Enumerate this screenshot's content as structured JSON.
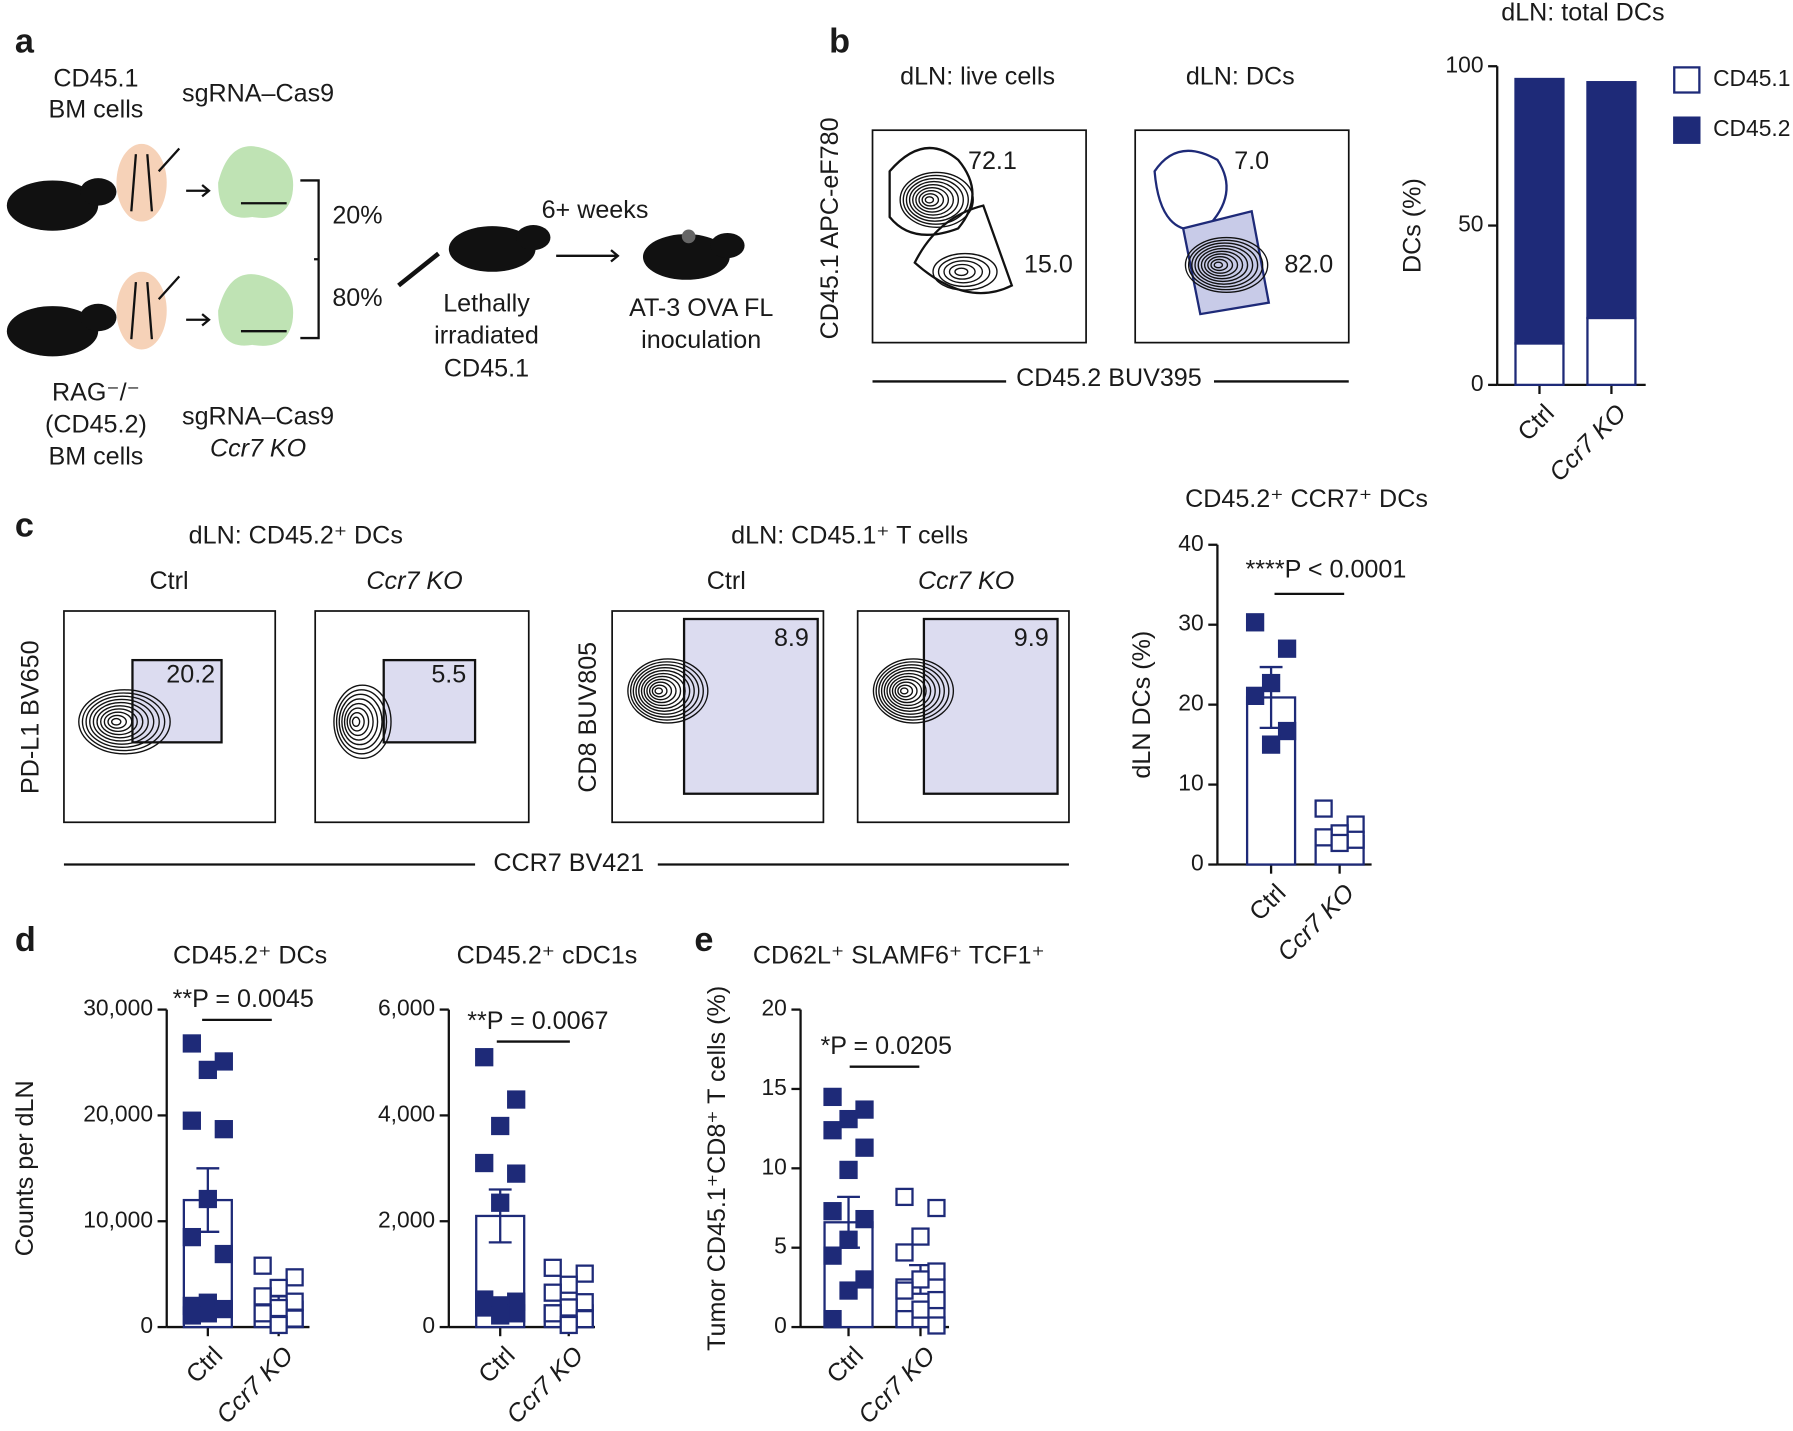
{
  "panel_labels": [
    "a",
    "b",
    "c",
    "d",
    "e"
  ],
  "schematic": {
    "donor_1": [
      "CD45.1",
      "BM cells"
    ],
    "edit_1": "sgRNA–Cas9",
    "ratios": [
      "20%",
      "80%"
    ],
    "time": "6+ weeks",
    "recipient": [
      "Lethally",
      "irradiated",
      "CD45.1"
    ],
    "outcome": [
      "AT-3 OVA FL",
      "inoculation"
    ],
    "donor_2": [
      "RAG⁻/⁻",
      "(CD45.2)",
      "BM cells"
    ],
    "edit_2": [
      "sgRNA–Cas9",
      "Ccr7 KO"
    ]
  },
  "flow_b": {
    "titles": [
      "dLN: live cells",
      "dLN: DCs"
    ],
    "y_label": "CD45.1 APC-eF780",
    "x_label": "CD45.2 BUV395",
    "gates": [
      "72.1",
      "15.0",
      "7.0",
      "82.0"
    ]
  },
  "flow_c": {
    "titles": [
      "dLN: CD45.2⁺ DCs",
      "dLN: CD45.1⁺ T cells"
    ],
    "columns": [
      "Ctrl",
      "Ccr7 KO",
      "Ctrl",
      "Ccr7 KO"
    ],
    "y_labels": [
      "PD-L1 BV650",
      "CD8 BUV805"
    ],
    "x_label": "CCR7 BV421",
    "gates": [
      "20.2",
      "5.5",
      "8.9",
      "9.9"
    ]
  },
  "chart_data": [
    {
      "type": "stacked_bar",
      "title": "dLN: total DCs",
      "ylabel": "DCs (%)",
      "categories": [
        "Ctrl",
        "Ccr7 KO"
      ],
      "series": [
        {
          "name": "CD45.1",
          "color": "#ffffff",
          "values": [
            13,
            21
          ]
        },
        {
          "name": "CD45.2",
          "color": "#1e2a78",
          "values": [
            83,
            74
          ]
        }
      ],
      "edge_color": "#1e2a78",
      "ylim": [
        0,
        100
      ],
      "yticks": [
        0,
        50,
        100
      ],
      "legend": "right"
    },
    {
      "type": "scatter_bar",
      "title": "CD45.2⁺ CCR7⁺ DCs",
      "ylabel": "dLN DCs (%)",
      "annotation": "****P < 0.0001",
      "categories": [
        "Ctrl",
        "Ccr7 KO"
      ],
      "values": [
        20.9,
        3.6
      ],
      "errors": [
        3.8,
        0.6
      ],
      "points": [
        [
          30.3,
          27,
          22.7,
          21.1,
          16.7,
          15
        ],
        [
          7,
          5,
          3.9,
          3.4,
          3.1,
          2.7
        ]
      ],
      "filled": [
        true,
        false
      ],
      "color": "#1e2a78",
      "ylim": [
        0,
        40
      ],
      "yticks": [
        0,
        10,
        20,
        30,
        40
      ]
    },
    {
      "type": "scatter_bar",
      "title": "CD45.2⁺ DCs",
      "ylabel": "Counts per dLN",
      "annotation": "**P = 0.0045",
      "categories": [
        "Ctrl",
        "Ccr7 KO"
      ],
      "values": [
        12000,
        2400
      ],
      "errors": [
        3000,
        500
      ],
      "points": [
        [
          26800,
          25100,
          24300,
          19500,
          18700,
          12100,
          8500,
          6900,
          2300,
          2000,
          1700,
          1300,
          1100
        ],
        [
          5800,
          4700,
          3700,
          2900,
          2400,
          1800,
          1300,
          800,
          200
        ]
      ],
      "filled": [
        true,
        false
      ],
      "color": "#1e2a78",
      "ylim": [
        0,
        30000
      ],
      "yticks": [
        0,
        {
          "value": 10000,
          "label": "10,000"
        },
        {
          "value": 20000,
          "label": "20,000"
        },
        {
          "value": 30000,
          "label": "30,000"
        }
      ]
    },
    {
      "type": "scatter_bar",
      "title": "CD45.2⁺ cDC1s",
      "annotation": "**P = 0.0067",
      "categories": [
        "Ctrl",
        "Ccr7 KO"
      ],
      "values": [
        2100,
        410
      ],
      "errors": [
        500,
        110
      ],
      "points": [
        [
          5100,
          4300,
          3800,
          3100,
          2900,
          2350,
          520,
          480,
          410,
          370,
          260,
          220
        ],
        [
          1120,
          1010,
          800,
          650,
          470,
          370,
          260,
          150,
          40
        ]
      ],
      "filled": [
        true,
        false
      ],
      "color": "#1e2a78",
      "ylim": [
        0,
        6000
      ],
      "yticks": [
        0,
        {
          "value": 2000,
          "label": "2,000"
        },
        {
          "value": 4000,
          "label": "4,000"
        },
        {
          "value": 6000,
          "label": "6,000"
        }
      ]
    },
    {
      "type": "scatter_bar",
      "title": "CD62L⁺ SLAMF6⁺ TCF1⁺",
      "ylabel": "Tumor CD45.1⁺CD8⁺ T cells (%)",
      "annotation": "*P = 0.0205",
      "categories": [
        "Ctrl",
        "Ccr7 KO"
      ],
      "values": [
        6.6,
        3.0
      ],
      "errors": [
        1.6,
        0.9
      ],
      "points": [
        [
          14.5,
          13.7,
          13.1,
          12.4,
          11.3,
          9.9,
          7.3,
          6.8,
          5.5,
          4.5,
          3.0,
          2.3,
          0.5
        ],
        [
          8.2,
          7.5,
          5.7,
          4.7,
          3.5,
          3.0,
          2.3,
          1.7,
          1.1,
          0.5,
          0.1
        ]
      ],
      "filled": [
        true,
        false
      ],
      "color": "#1e2a78",
      "ylim": [
        0,
        20
      ],
      "yticks": [
        0,
        5,
        10,
        15,
        20
      ]
    }
  ]
}
